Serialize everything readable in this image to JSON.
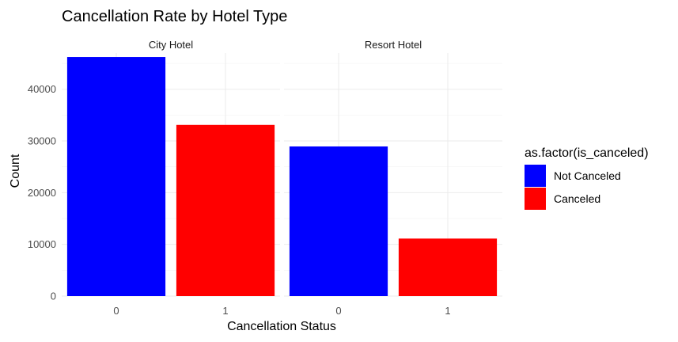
{
  "chart_data": {
    "type": "bar",
    "title": "Cancellation Rate by Hotel Type",
    "xlabel": "Cancellation Status",
    "ylabel": "Count",
    "categories": [
      "0",
      "1"
    ],
    "ylim": [
      0,
      47000
    ],
    "yticks": [
      0,
      10000,
      20000,
      30000,
      40000
    ],
    "ytick_labels": [
      "0",
      "10000",
      "20000",
      "30000",
      "40000"
    ],
    "grid": true,
    "facets": [
      {
        "name": "City Hotel",
        "values": [
          46228,
          33102
        ]
      },
      {
        "name": "Resort Hotel",
        "values": [
          28938,
          11122
        ]
      }
    ],
    "legend": {
      "title": "as.factor(is_canceled)",
      "position": "right",
      "entries": [
        {
          "label": "Not Canceled",
          "color": "#0000FF"
        },
        {
          "label": "Canceled",
          "color": "#FF0000"
        }
      ]
    }
  }
}
